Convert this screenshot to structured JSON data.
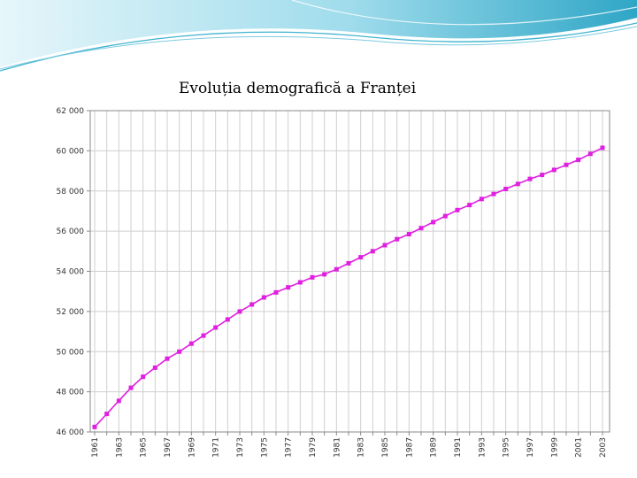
{
  "slide": {
    "title": "Evoluția demografică a Franței"
  },
  "colors": {
    "series": "#e020e0",
    "header_light": "#d8f0f6",
    "header_dark": "#3fb3d0",
    "grid": "#cfcfcf"
  },
  "chart_data": {
    "type": "line",
    "title": "Evoluția demografică a Franței",
    "xlabel": "",
    "ylabel": "",
    "ylim": [
      46000,
      62000
    ],
    "xlim": [
      1961,
      2003
    ],
    "y_ticks": [
      "62 000",
      "60 000",
      "58 000",
      "56 000",
      "54 000",
      "52 000",
      "50 000",
      "48 000",
      "46 000"
    ],
    "x_ticks": [
      "1961",
      "1963",
      "1965",
      "1967",
      "1969",
      "1971",
      "1973",
      "1975",
      "1977",
      "1979",
      "1981",
      "1983",
      "1985",
      "1987",
      "1989",
      "1991",
      "1993",
      "1995",
      "1997",
      "1999",
      "2001",
      "2003"
    ],
    "grid": true,
    "series": [
      {
        "marker": "square",
        "x": [
          1961,
          1962,
          1963,
          1964,
          1965,
          1966,
          1967,
          1968,
          1969,
          1970,
          1971,
          1972,
          1973,
          1974,
          1975,
          1976,
          1977,
          1978,
          1979,
          1980,
          1981,
          1982,
          1983,
          1984,
          1985,
          1986,
          1987,
          1988,
          1989,
          1990,
          1991,
          1992,
          1993,
          1994,
          1995,
          1996,
          1997,
          1998,
          1999,
          2000,
          2001,
          2002,
          2003
        ],
        "values": [
          46250,
          46900,
          47550,
          48200,
          48750,
          49200,
          49650,
          50000,
          50400,
          50800,
          51200,
          51600,
          52000,
          52350,
          52700,
          52950,
          53200,
          53450,
          53700,
          53850,
          54100,
          54400,
          54700,
          55000,
          55300,
          55600,
          55850,
          56150,
          56450,
          56750,
          57050,
          57300,
          57600,
          57850,
          58100,
          58350,
          58600,
          58800,
          59050,
          59300,
          59550,
          59850,
          60150
        ]
      }
    ]
  }
}
